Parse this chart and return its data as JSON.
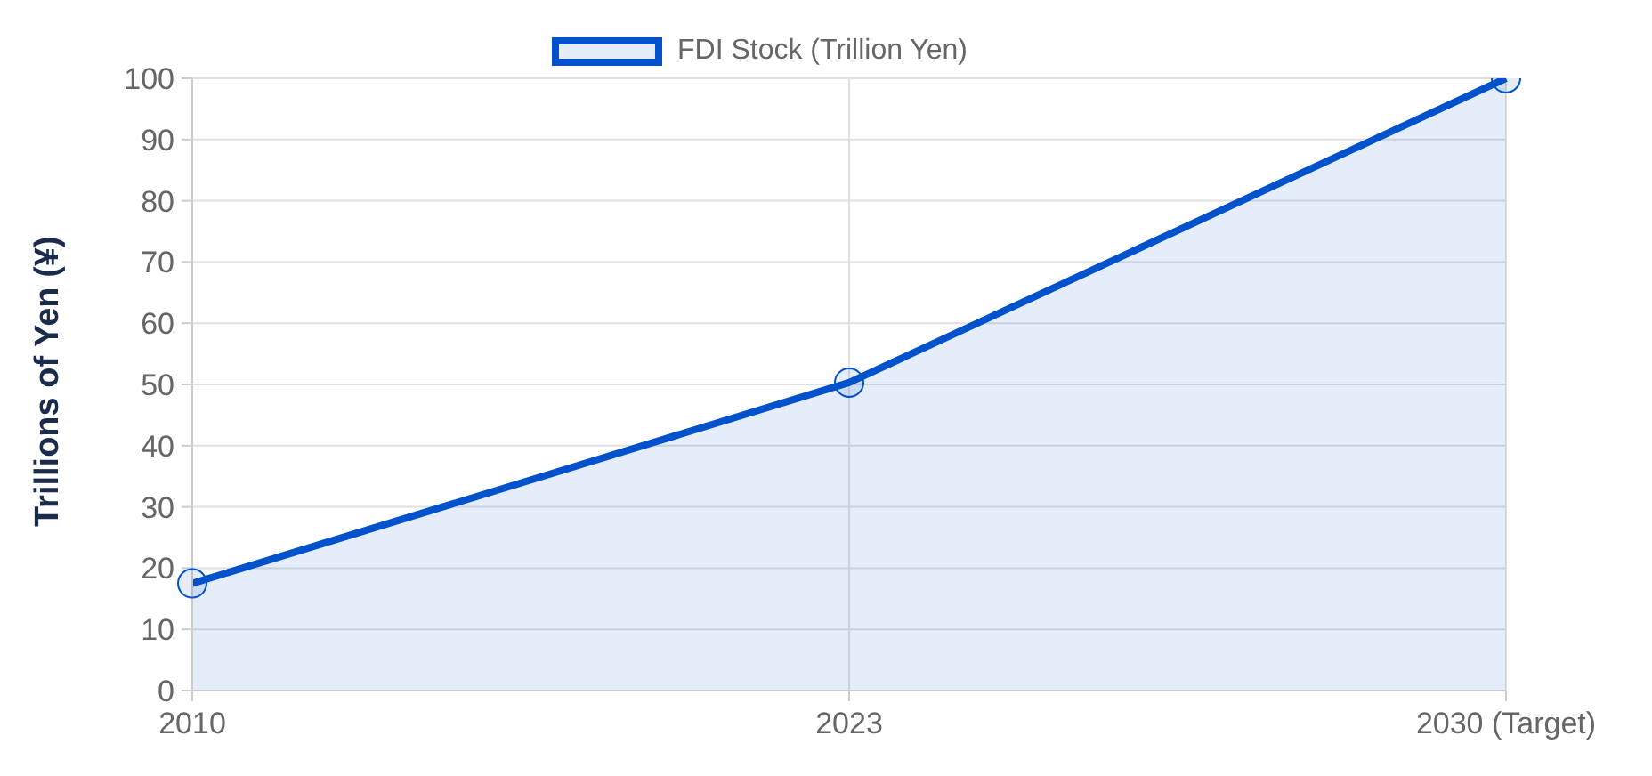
{
  "chart_data": {
    "type": "area",
    "ylabel": "Trillions of Yen (¥)",
    "categories": [
      "2010",
      "2023",
      "2030 (Target)"
    ],
    "series": [
      {
        "name": "FDI Stock (Trillion Yen)",
        "color": "#0052cc",
        "values": [
          17.5,
          50.3,
          100
        ]
      }
    ],
    "ylim": [
      0,
      100
    ],
    "yticks": [
      0,
      10,
      20,
      30,
      40,
      50,
      60,
      70,
      80,
      90,
      100
    ],
    "grid": true,
    "legend": "top",
    "marker": "circle",
    "line_style": "solid"
  }
}
